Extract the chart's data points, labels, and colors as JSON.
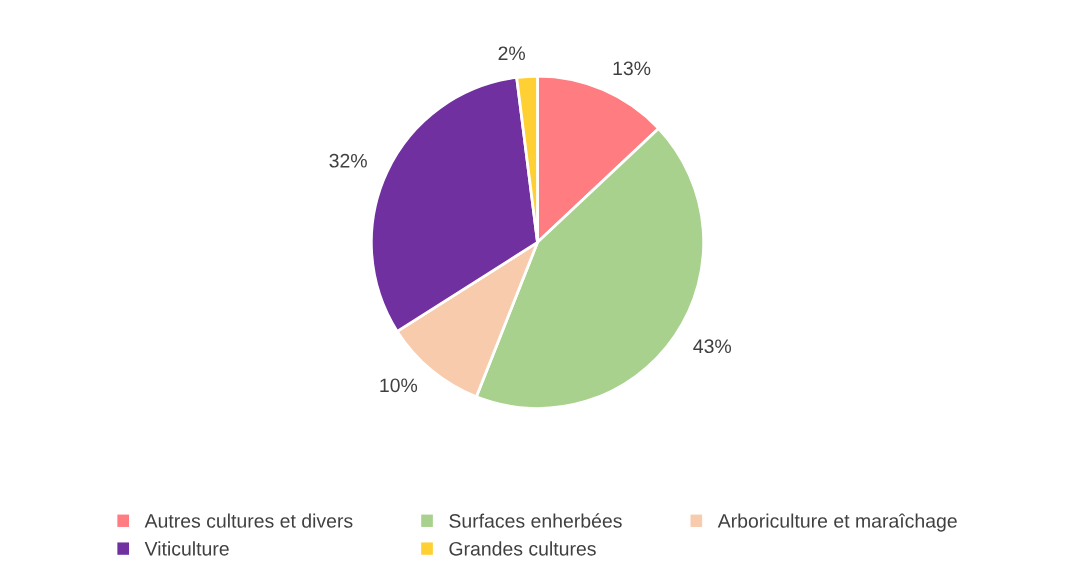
{
  "chart_data": {
    "type": "pie",
    "categories": [
      "Autres cultures et divers",
      "Surfaces enherbées",
      "Arboriculture et maraîchage",
      "Viticulture",
      "Grandes cultures"
    ],
    "values": [
      13,
      43,
      10,
      32,
      2
    ],
    "value_labels": [
      "13%",
      "43%",
      "10%",
      "32%",
      "2%"
    ],
    "colors": [
      "#ff7c80",
      "#a9d18e",
      "#f8cbad",
      "#7030a0",
      "#ffd033"
    ],
    "legend": "bottom"
  }
}
